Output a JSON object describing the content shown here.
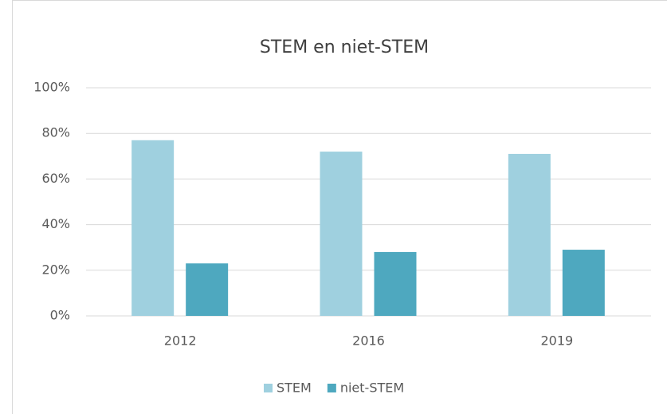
{
  "chart_data": {
    "type": "bar",
    "title": "STEM en niet-STEM",
    "categories": [
      "2012",
      "2016",
      "2019"
    ],
    "series": [
      {
        "name": "STEM",
        "color": "#9fd0df",
        "values": [
          77,
          72,
          71
        ]
      },
      {
        "name": "niet-STEM",
        "color": "#4ea8bf",
        "values": [
          23,
          28,
          29
        ]
      }
    ],
    "ylim": [
      0,
      100
    ],
    "yticks": [
      {
        "value": 0,
        "label": "0%"
      },
      {
        "value": 20,
        "label": "20%"
      },
      {
        "value": 40,
        "label": "40%"
      },
      {
        "value": 60,
        "label": "60%"
      },
      {
        "value": 80,
        "label": "80%"
      },
      {
        "value": 100,
        "label": "100%"
      }
    ],
    "grid": true,
    "legend": "bottom"
  }
}
